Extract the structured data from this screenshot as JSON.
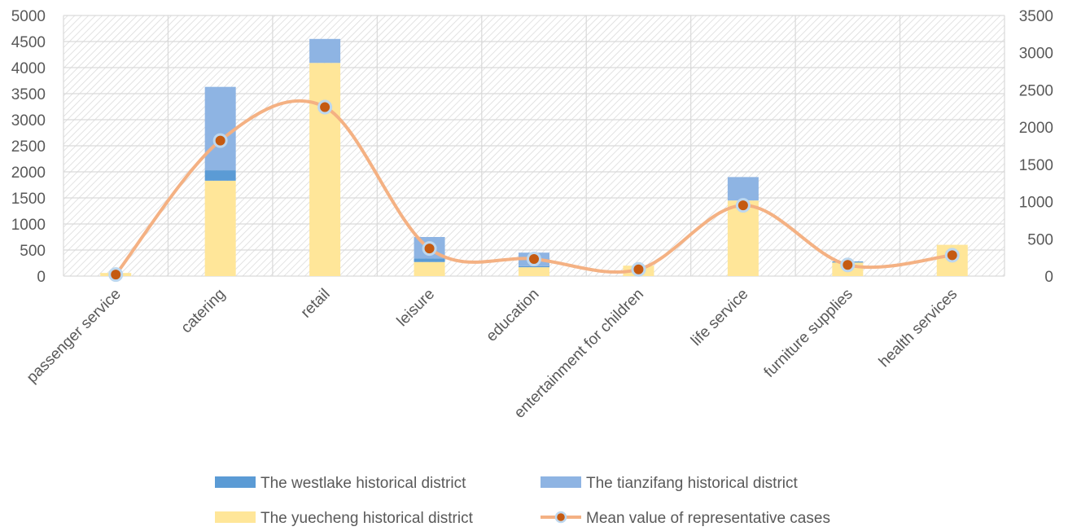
{
  "chart_data": {
    "type": "bar",
    "stacked": true,
    "categories": [
      "passenger service",
      "catering",
      "retail",
      "leisure",
      "education",
      "entertainment for children",
      "life service",
      "furniture supplies",
      "health services"
    ],
    "series": [
      {
        "name": "The yuecheng historical district",
        "axis": "left",
        "color": "#FFE699",
        "values": [
          60,
          1830,
          4090,
          270,
          170,
          200,
          1450,
          260,
          600
        ]
      },
      {
        "name": "The westlake historical district",
        "axis": "left",
        "color": "#5B9BD5",
        "values": [
          0,
          200,
          0,
          70,
          20,
          0,
          0,
          20,
          0
        ]
      },
      {
        "name": "The tianzifang historical district",
        "axis": "left",
        "color": "#8EB4E3",
        "values": [
          0,
          1600,
          460,
          410,
          260,
          0,
          450,
          0,
          0
        ]
      },
      {
        "name": "Mean value of representative cases",
        "type": "line",
        "axis": "right",
        "color": "#F4B183",
        "marker_color": "#C55A11",
        "values": [
          20,
          1820,
          2270,
          370,
          230,
          90,
          950,
          150,
          280
        ]
      }
    ],
    "y_left": {
      "min": 0,
      "max": 5000,
      "step": 500,
      "ticks": [
        "0",
        "500",
        "1000",
        "1500",
        "2000",
        "2500",
        "3000",
        "3500",
        "4000",
        "4500",
        "5000"
      ]
    },
    "y_right": {
      "min": 0,
      "max": 3500,
      "step": 500,
      "ticks": [
        "0",
        "500",
        "1000",
        "1500",
        "2000",
        "2500",
        "3000",
        "3500"
      ]
    },
    "grid": true,
    "background_pattern": "diagonal hatch",
    "legend_position": "bottom",
    "legend_order": [
      "The westlake historical district",
      "The tianzifang historical district",
      "The yuecheng historical district",
      "Mean value of representative cases"
    ]
  }
}
